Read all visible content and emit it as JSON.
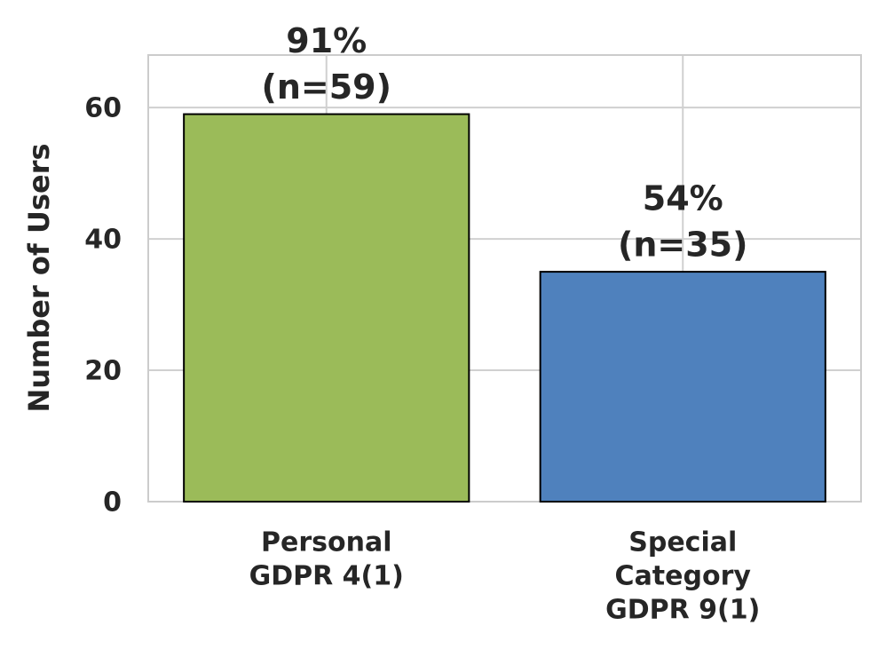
{
  "chart_data": {
    "type": "bar",
    "y_label": "Number of Users",
    "categories": [
      [
        "Personal",
        "GDPR 4(1)"
      ],
      [
        "Special",
        "Category",
        "GDPR 9(1)"
      ]
    ],
    "values": [
      59,
      35
    ],
    "value_labels": [
      [
        "91%",
        "(n=59)"
      ],
      [
        "54%",
        "(n=35)"
      ]
    ],
    "colors": [
      "#9bbb59",
      "#4f81bd"
    ],
    "ylim": [
      0,
      68
    ],
    "yticks": [
      0,
      20,
      40,
      60
    ],
    "grid": true
  }
}
